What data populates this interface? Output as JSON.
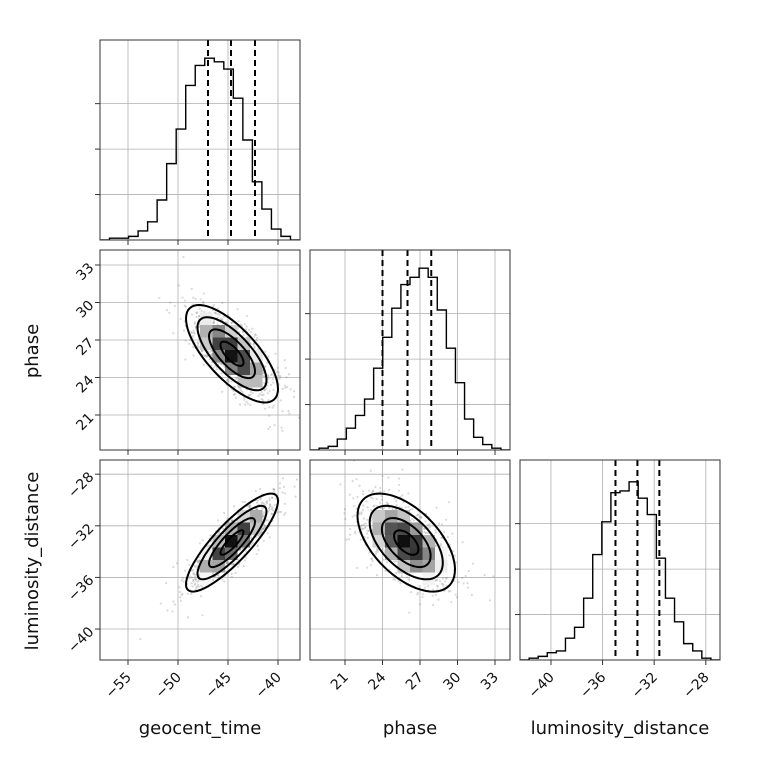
{
  "chart_data": {
    "type": "corner",
    "parameters": [
      "geocent_time",
      "phase",
      "luminosity_distance"
    ],
    "labels": {
      "geocent_time": "geocent_time",
      "phase": "phase",
      "luminosity_distance": "luminosity_distance"
    },
    "ranges": {
      "geocent_time": [
        -57.8,
        -37.8
      ],
      "phase": [
        18.2,
        34.2
      ],
      "luminosity_distance": [
        -42.4,
        -26.9
      ]
    },
    "ticks": {
      "geocent_time": [
        -55,
        -50,
        -45,
        -40
      ],
      "phase": [
        21,
        24,
        27,
        30,
        33
      ],
      "luminosity_distance": [
        -40,
        -36,
        -32,
        -28
      ]
    },
    "tick_labels": {
      "geocent_time": [
        "−55",
        "−50",
        "−45",
        "−40"
      ],
      "phase": [
        "21",
        "24",
        "27",
        "30",
        "33"
      ],
      "luminosity_distance": [
        "−40",
        "−36",
        "−32",
        "−28"
      ]
    },
    "quantiles": {
      "geocent_time": [
        -47.0,
        -44.7,
        -42.3
      ],
      "phase": [
        24.0,
        26.0,
        27.9
      ],
      "luminosity_distance": [
        -35.0,
        -33.3,
        -31.6
      ]
    },
    "histograms": {
      "geocent_time": [
        0,
        0.01,
        0.01,
        0.02,
        0.05,
        0.1,
        0.22,
        0.42,
        0.61,
        0.85,
        0.96,
        1.0,
        0.98,
        0.94,
        0.78,
        0.55,
        0.32,
        0.17,
        0.06,
        0.02,
        0.0
      ],
      "phase": [
        0.0,
        0.01,
        0.02,
        0.06,
        0.12,
        0.19,
        0.28,
        0.45,
        0.62,
        0.78,
        0.91,
        0.95,
        1.0,
        0.95,
        0.77,
        0.56,
        0.37,
        0.17,
        0.07,
        0.03,
        0.01,
        0.0
      ],
      "luminosity_distance": [
        0.0,
        0.01,
        0.02,
        0.04,
        0.05,
        0.12,
        0.18,
        0.34,
        0.58,
        0.76,
        0.92,
        0.93,
        0.98,
        0.89,
        0.8,
        0.56,
        0.34,
        0.21,
        0.09,
        0.05,
        0.01,
        0.0
      ]
    },
    "hist_ylim": [
      0,
      1.1
    ],
    "hist_yticks": [
      0.25,
      0.5,
      0.75
    ],
    "posterior": {
      "geocent_time__phase": {
        "center": [
          -44.6,
          25.9
        ],
        "std": [
          2.3,
          1.95
        ],
        "corr": -0.72
      },
      "geocent_time__luminosity_distance": {
        "center": [
          -44.6,
          -33.3
        ],
        "std": [
          2.3,
          1.9
        ],
        "corr": 0.85
      },
      "phase__luminosity_distance": {
        "center": [
          25.9,
          -33.3
        ],
        "std": [
          1.95,
          1.9
        ],
        "corr": -0.55
      }
    },
    "contour_levels_sigma": [
      0.5,
      1.0,
      1.5,
      2.0
    ],
    "grid": true
  }
}
